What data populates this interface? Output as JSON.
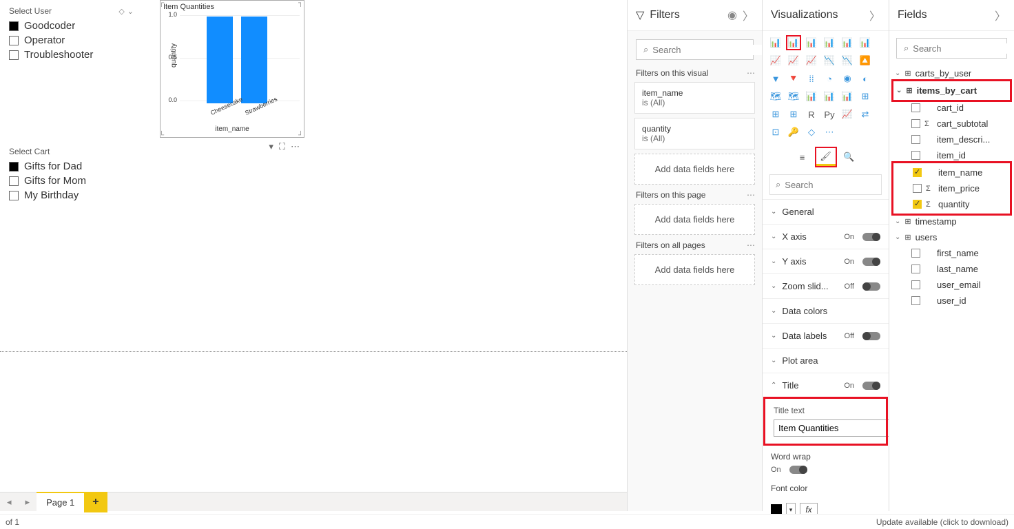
{
  "slicers": {
    "user": {
      "title": "Select User",
      "items": [
        {
          "label": "Goodcoder",
          "checked": true
        },
        {
          "label": "Operator",
          "checked": false
        },
        {
          "label": "Troubleshooter",
          "checked": false
        }
      ]
    },
    "cart": {
      "title": "Select Cart",
      "items": [
        {
          "label": "Gifts for Dad",
          "checked": true
        },
        {
          "label": "Gifts for Mom",
          "checked": false
        },
        {
          "label": "My Birthday",
          "checked": false
        }
      ]
    }
  },
  "chart": {
    "type": "bar",
    "title": "Item Quantities",
    "x_label": "item_name",
    "y_label": "quantity",
    "categories": [
      "Cheesecake",
      "Strawberries"
    ],
    "values": [
      1,
      1
    ],
    "ylim": [
      0,
      1
    ],
    "yticks": [
      "0.0",
      "0.5",
      "1.0"
    ],
    "bar_color": "#118dff",
    "grid_color": "#eeeeee",
    "bar_width": 0.45
  },
  "filters": {
    "header": "Filters",
    "search_placeholder": "Search",
    "sections": {
      "visual": {
        "label": "Filters on this visual",
        "cards": [
          {
            "field": "item_name",
            "summary": "is (All)"
          },
          {
            "field": "quantity",
            "summary": "is (All)"
          }
        ],
        "drop": "Add data fields here"
      },
      "page": {
        "label": "Filters on this page",
        "drop": "Add data fields here"
      },
      "all": {
        "label": "Filters on all pages",
        "drop": "Add data fields here"
      }
    }
  },
  "viz": {
    "header": "Visualizations",
    "icons": [
      "📊",
      "📊",
      "📊",
      "📊",
      "📊",
      "📊",
      "📈",
      "📈",
      "📈",
      "📉",
      "📉",
      "🔼",
      "▼",
      "🔻",
      "⁞⁞",
      "◔",
      "◉",
      "◐",
      "🗺",
      "🗺",
      "📊",
      "📊",
      "📊",
      "⊞",
      "⊞",
      "⊞",
      "R",
      "Py",
      "📈",
      "⇄",
      "⊡",
      "🔑",
      "◇",
      "⋯"
    ],
    "highlight_index": 1,
    "search": "Search",
    "properties": [
      {
        "label": "General",
        "toggle": null,
        "open": false
      },
      {
        "label": "X axis",
        "toggle": "On",
        "open": false
      },
      {
        "label": "Y axis",
        "toggle": "On",
        "open": false
      },
      {
        "label": "Zoom slid...",
        "toggle": "Off",
        "open": false
      },
      {
        "label": "Data colors",
        "toggle": null,
        "open": false
      },
      {
        "label": "Data labels",
        "toggle": "Off",
        "open": false
      },
      {
        "label": "Plot area",
        "toggle": null,
        "open": false
      },
      {
        "label": "Title",
        "toggle": "On",
        "open": true
      }
    ],
    "title_text": {
      "label": "Title text",
      "value": "Item Quantities",
      "fx": "fx"
    },
    "word_wrap": {
      "label": "Word wrap",
      "value": "On"
    },
    "font_color": {
      "label": "Font color",
      "swatch": "#000000"
    }
  },
  "fields": {
    "header": "Fields",
    "search_placeholder": "Search",
    "tables": [
      {
        "name": "carts_by_user",
        "expanded": false,
        "highlight": false,
        "active": false,
        "fields": []
      },
      {
        "name": "items_by_cart",
        "expanded": true,
        "highlight": true,
        "active": true,
        "fields": [
          {
            "name": "cart_id",
            "checked": false,
            "sigma": false
          },
          {
            "name": "cart_subtotal",
            "checked": false,
            "sigma": true
          },
          {
            "name": "item_descri...",
            "checked": false,
            "sigma": false
          },
          {
            "name": "item_id",
            "checked": false,
            "sigma": false
          },
          {
            "name": "item_name",
            "checked": true,
            "sigma": false,
            "hl": true
          },
          {
            "name": "item_price",
            "checked": false,
            "sigma": true,
            "hl": true
          },
          {
            "name": "quantity",
            "checked": true,
            "sigma": true,
            "hl": true
          }
        ]
      },
      {
        "name": "timestamp",
        "expanded": false,
        "highlight": false,
        "active": false,
        "tbl": false,
        "fields": []
      },
      {
        "name": "users",
        "expanded": true,
        "highlight": false,
        "active": false,
        "fields": [
          {
            "name": "first_name",
            "checked": false,
            "sigma": false
          },
          {
            "name": "last_name",
            "checked": false,
            "sigma": false
          },
          {
            "name": "user_email",
            "checked": false,
            "sigma": false
          },
          {
            "name": "user_id",
            "checked": false,
            "sigma": false
          }
        ]
      }
    ]
  },
  "tabbar": {
    "page": "Page 1"
  },
  "status": {
    "left": "of 1",
    "right": "Update available (click to download)"
  }
}
